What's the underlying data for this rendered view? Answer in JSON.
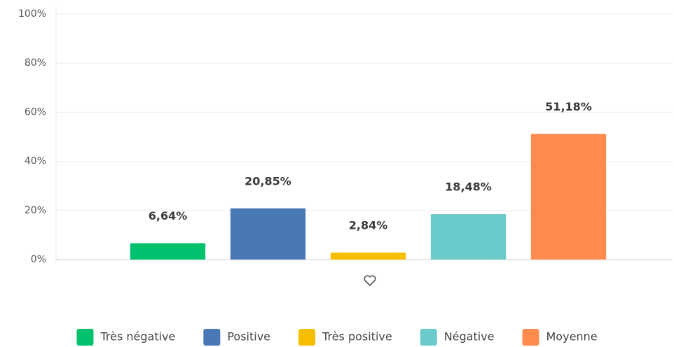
{
  "chart_data": {
    "type": "bar",
    "categories": [
      "Très négative",
      "Positive",
      "Très positive",
      "Négative",
      "Moyenne"
    ],
    "values": [
      6.64,
      20.85,
      2.84,
      18.48,
      51.18
    ],
    "value_labels": [
      "6,64%",
      "20,85%",
      "2,84%",
      "18,48%",
      "51,18%"
    ],
    "colors": [
      "#00c16e",
      "#4a77b6",
      "#f7bd00",
      "#6bcbca",
      "#ff8b4f"
    ],
    "ylim": [
      0,
      100
    ],
    "yticks": [
      {
        "value": 0,
        "label": "0%"
      },
      {
        "value": 20,
        "label": "20%"
      },
      {
        "value": 40,
        "label": "40%"
      },
      {
        "value": 60,
        "label": "60%"
      },
      {
        "value": 80,
        "label": "80%"
      },
      {
        "value": 100,
        "label": "100%"
      }
    ],
    "grid": true,
    "legend": "bottom"
  }
}
